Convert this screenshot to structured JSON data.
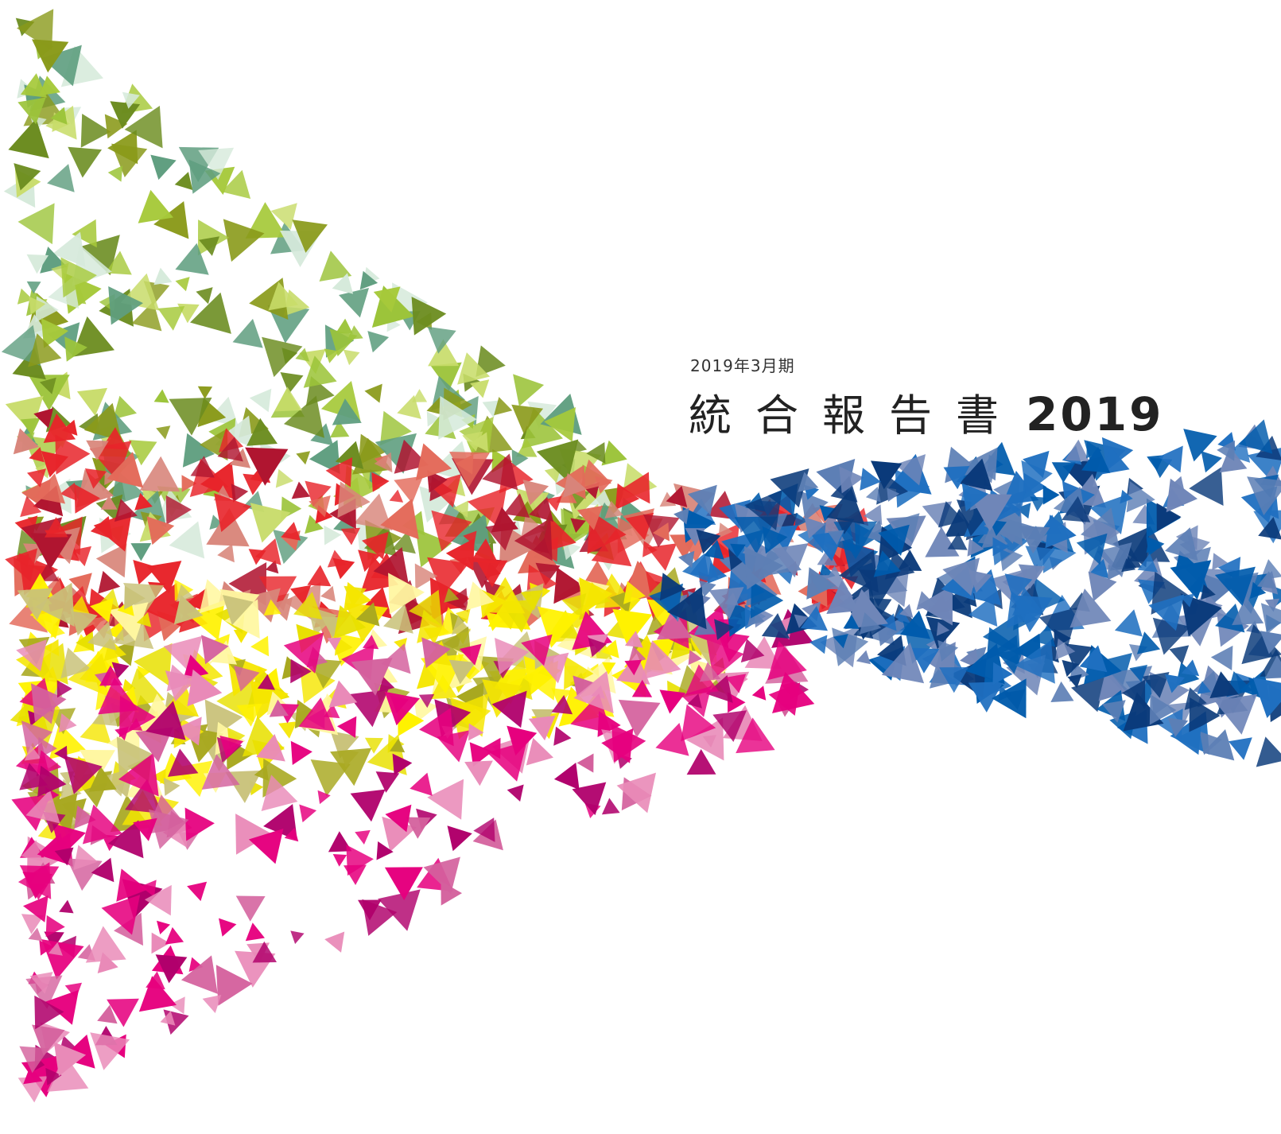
{
  "header": {
    "period": "2019年3月期",
    "title": "統合報告書",
    "year": "2019"
  }
}
